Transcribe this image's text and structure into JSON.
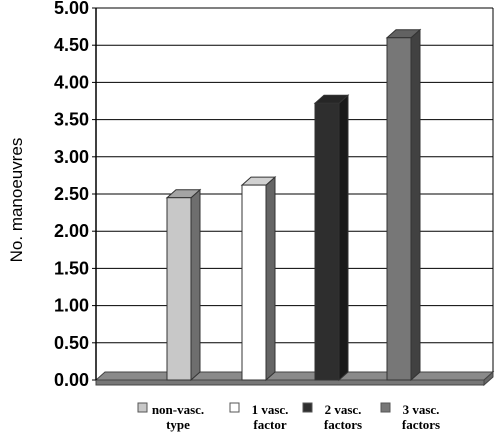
{
  "chart_data": {
    "type": "bar",
    "title": "",
    "xlabel": "",
    "ylabel": "No. manoeuvres",
    "ylim": [
      0,
      5
    ],
    "yticks": [
      "0.00",
      "0.50",
      "1.00",
      "1.50",
      "2.00",
      "2.50",
      "3.00",
      "3.50",
      "4.00",
      "4.50",
      "5.00"
    ],
    "grid": true,
    "legend": "bottom",
    "three_d": true,
    "series": [
      {
        "label_lines": [
          "non-vasc.",
          "type"
        ],
        "value": 2.45,
        "color": "#c8c8c8"
      },
      {
        "label_lines": [
          "1 vasc.",
          "factor"
        ],
        "value": 2.62,
        "color": "#ffffff"
      },
      {
        "label_lines": [
          "2 vasc.",
          "factors"
        ],
        "value": 3.72,
        "color": "#2e2e2e"
      },
      {
        "label_lines": [
          "3 vasc.",
          "factors"
        ],
        "value": 4.6,
        "color": "#777777"
      }
    ]
  }
}
